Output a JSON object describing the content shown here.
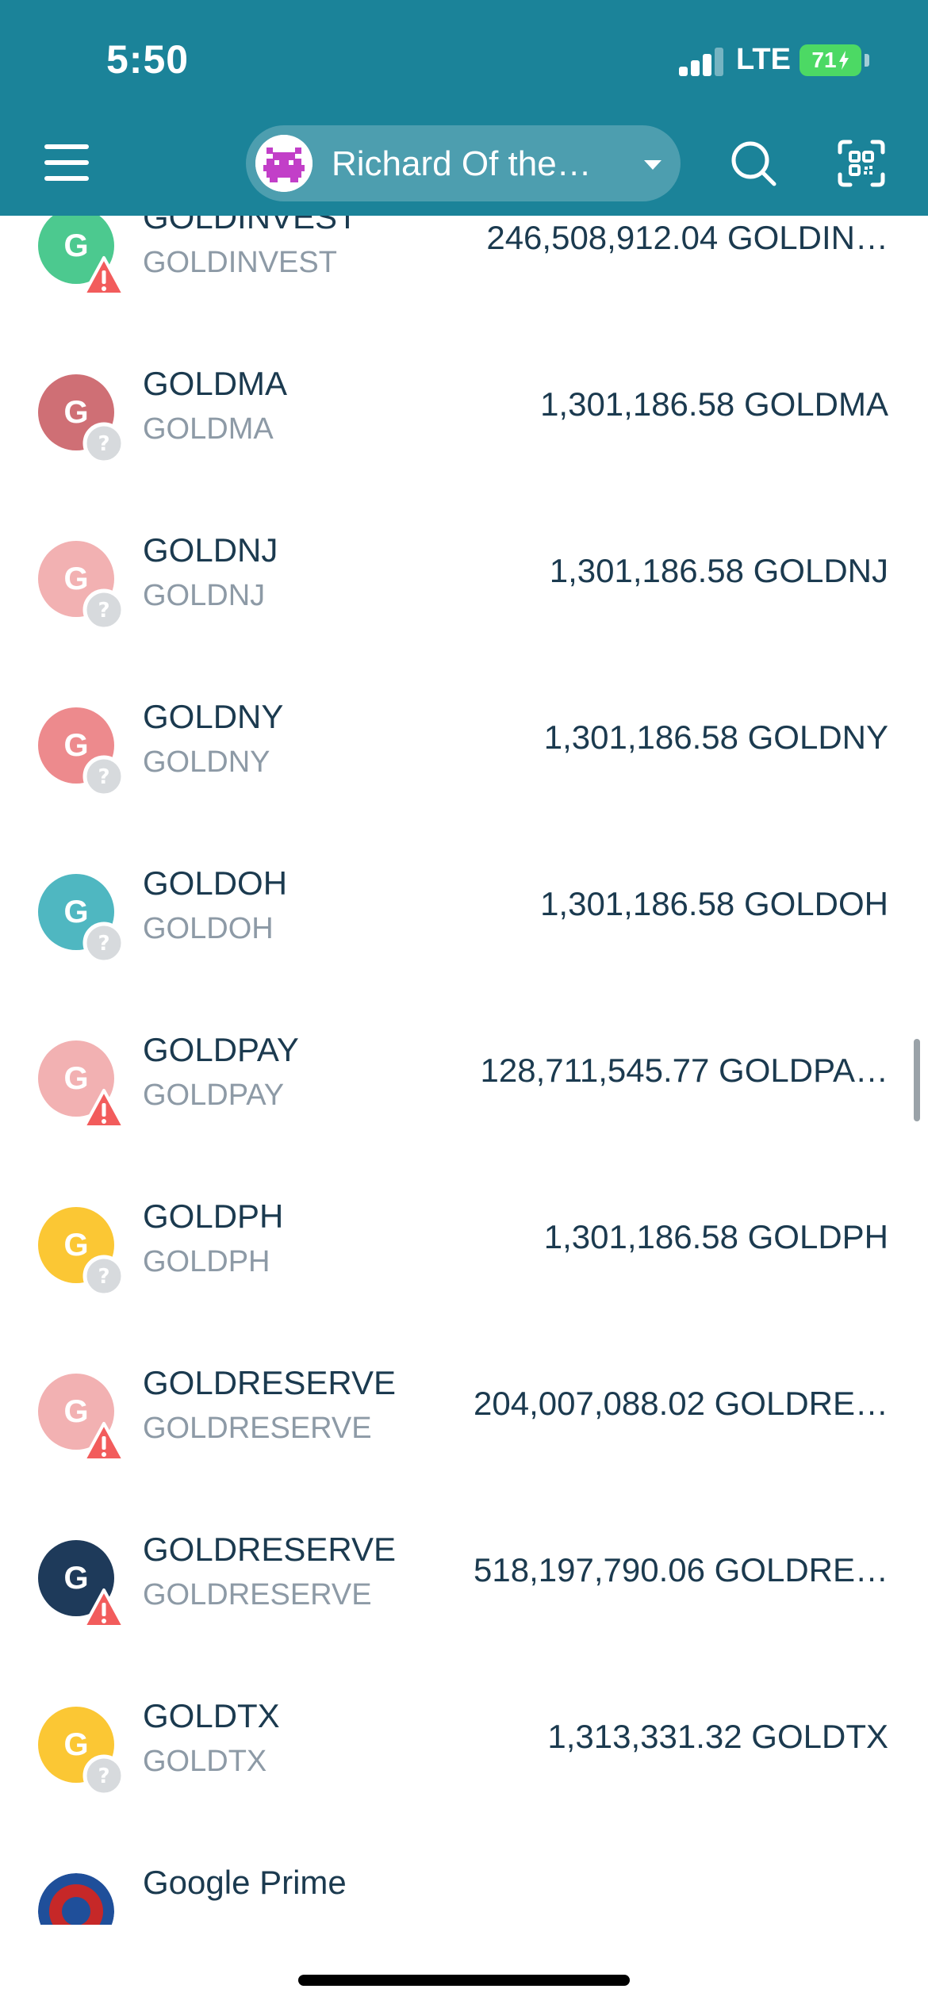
{
  "status_bar": {
    "time": "5:50",
    "network": "LTE",
    "battery": "71"
  },
  "header": {
    "account_name": "Richard Of the…",
    "icons": [
      "menu-icon",
      "search-icon",
      "scan-qr-icon",
      "chevron-down-icon"
    ]
  },
  "colors": {
    "header_bg": "#1b8399",
    "text_primary": "#1b3a4f",
    "text_secondary": "#8d9aa6"
  },
  "tokens": [
    {
      "name": "GOLDINVEST",
      "symbol": "GOLDINVEST",
      "balance": "246,508,912.04 GOLDIN…",
      "letter": "G",
      "color": "#4cc98f",
      "badge": "warning"
    },
    {
      "name": "GOLDMA",
      "symbol": "GOLDMA",
      "balance": "1,301,186.58 GOLDMA",
      "letter": "G",
      "color": "#cf6f75",
      "badge": "unknown"
    },
    {
      "name": "GOLDNJ",
      "symbol": "GOLDNJ",
      "balance": "1,301,186.58 GOLDNJ",
      "letter": "G",
      "color": "#f2b1b2",
      "badge": "unknown"
    },
    {
      "name": "GOLDNY",
      "symbol": "GOLDNY",
      "balance": "1,301,186.58 GOLDNY",
      "letter": "G",
      "color": "#ed8a8d",
      "badge": "unknown"
    },
    {
      "name": "GOLDOH",
      "symbol": "GOLDOH",
      "balance": "1,301,186.58 GOLDOH",
      "letter": "G",
      "color": "#4fb7c1",
      "badge": "unknown"
    },
    {
      "name": "GOLDPAY",
      "symbol": "GOLDPAY",
      "balance": "128,711,545.77 GOLDPA…",
      "letter": "G",
      "color": "#f2b1b2",
      "badge": "warning"
    },
    {
      "name": "GOLDPH",
      "symbol": "GOLDPH",
      "balance": "1,301,186.58 GOLDPH",
      "letter": "G",
      "color": "#fbc734",
      "badge": "unknown"
    },
    {
      "name": "GOLDRESERVE",
      "symbol": "GOLDRESERVE",
      "balance": "204,007,088.02 GOLDRE…",
      "letter": "G",
      "color": "#f2b1b2",
      "badge": "warning"
    },
    {
      "name": "GOLDRESERVE",
      "symbol": "GOLDRESERVE",
      "balance": "518,197,790.06 GOLDRE…",
      "letter": "G",
      "color": "#1e3a5a",
      "badge": "warning"
    },
    {
      "name": "GOLDTX",
      "symbol": "GOLDTX",
      "balance": "1,313,331.32 GOLDTX",
      "letter": "G",
      "color": "#fbc734",
      "badge": "unknown"
    },
    {
      "name": "Google Prime",
      "symbol": "",
      "balance": "",
      "letter": "",
      "color": "#c62828",
      "badge": "none"
    }
  ]
}
